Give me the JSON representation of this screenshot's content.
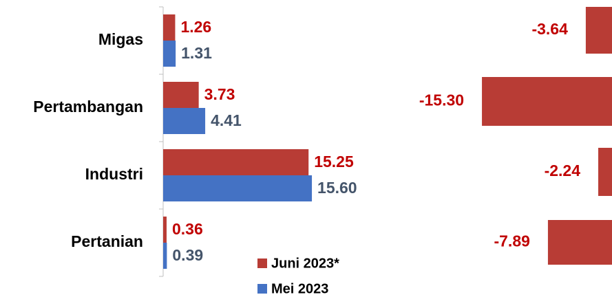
{
  "chart_data": [
    {
      "type": "barh",
      "categories": [
        "Migas",
        "Pertambangan",
        "Industri",
        "Pertanian"
      ],
      "series": [
        {
          "name": "Juni 2023*",
          "color": "#b83c35",
          "label_color": "#c00000",
          "values": [
            1.26,
            3.73,
            15.25,
            0.36
          ],
          "value_labels": [
            "1.26",
            "3.73",
            "15.25",
            "0.36"
          ]
        },
        {
          "name": "Mei 2023",
          "color": "#4472c4",
          "label_color": "#44546a",
          "values": [
            1.31,
            4.41,
            15.6,
            0.39
          ],
          "value_labels": [
            "1.31",
            "4.41",
            "15.60",
            "0.39"
          ]
        }
      ],
      "xlim": [
        0,
        20
      ]
    },
    {
      "type": "barh-neg",
      "values": [
        -3.64,
        -15.3,
        -2.24,
        -7.89
      ],
      "value_labels": [
        "-3.64",
        "-15.30",
        "-2.24",
        "-7.89"
      ],
      "color": "#b83c35",
      "label_color": "#c00000",
      "xlim": [
        -16,
        0
      ]
    }
  ]
}
